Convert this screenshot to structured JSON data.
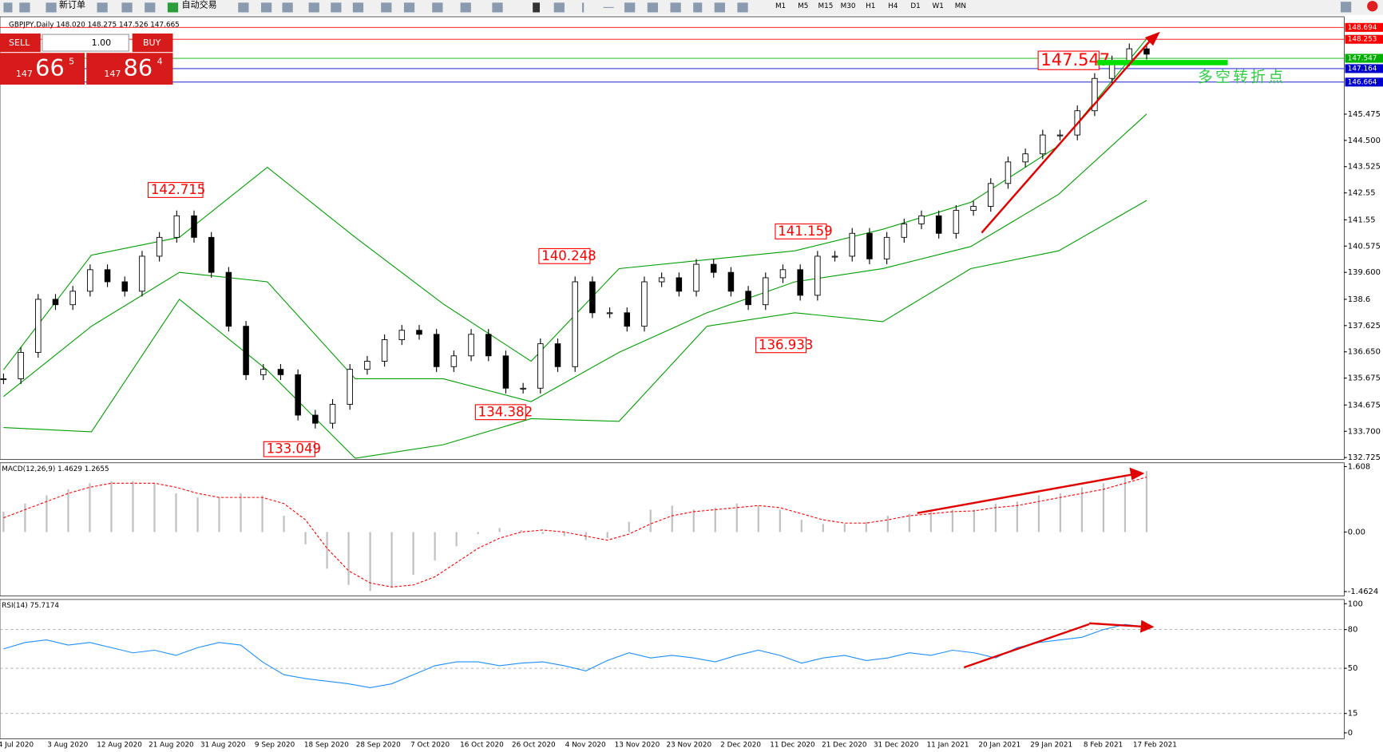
{
  "toolbar": {
    "new_order": "新订单",
    "auto_trading": "自动交易",
    "timeframes": [
      "M1",
      "M5",
      "M15",
      "M30",
      "H1",
      "H4",
      "D1",
      "W1",
      "MN"
    ]
  },
  "chart_header": "GBPJPY,Daily  148.020 148.275 147.526 147.665",
  "trade_panel": {
    "sell": "SELL",
    "lots": "1.00",
    "buy": "BUY",
    "bid_big": "147",
    "bid_main": "66",
    "bid_small": "5",
    "ask_big": "147",
    "ask_main": "86",
    "ask_small": "4"
  },
  "annotations": [
    "142.715",
    "133.049",
    "140.248",
    "134.382",
    "141.159",
    "136.933",
    "147.547",
    "多空转折点"
  ],
  "chart_data": [
    {
      "type": "candlestick",
      "ylim": [
        132.66,
        149.09
      ],
      "yticks": [
        145.475,
        {
          "value": 144.5,
          "label": "144.500"
        },
        143.525,
        142.55,
        141.55,
        140.575,
        {
          "value": 139.6,
          "label": "139.600"
        },
        138.6,
        137.625,
        {
          "value": 136.65,
          "label": "136.650"
        },
        135.675,
        134.675,
        {
          "value": 133.7,
          "label": "133.700"
        },
        132.725
      ],
      "levels": [
        {
          "value": 148.694,
          "color": "#ff0000"
        },
        {
          "value": 148.253,
          "color": "#ff0000"
        },
        {
          "value": 147.547,
          "color": "#00b000"
        },
        {
          "value": 147.164,
          "color": "#0000cc"
        },
        {
          "value": 146.664,
          "color": "#0000cc"
        }
      ],
      "x_labels": [
        "4 Jul 2020",
        "3 Aug 2020",
        "12 Aug 2020",
        "21 Aug 2020",
        "31 Aug 2020",
        "9 Sep 2020",
        "18 Sep 2020",
        "28 Sep 2020",
        "7 Oct 2020",
        "16 Oct 2020",
        "26 Oct 2020",
        "4 Nov 2020",
        "13 Nov 2020",
        "23 Nov 2020",
        "2 Dec 2020",
        "11 Dec 2020",
        "21 Dec 2020",
        "31 Dec 2020",
        "11 Jan 2021",
        "20 Jan 2021",
        "29 Jan 2021",
        "8 Feb 2021",
        "17 Feb 2021"
      ],
      "values": [
        135.65,
        136.63,
        138.6,
        138.4,
        138.9,
        139.7,
        139.25,
        138.9,
        140.2,
        140.9,
        141.7,
        140.9,
        139.6,
        137.6,
        135.8,
        136.0,
        135.8,
        134.3,
        134.0,
        134.7,
        136.0,
        136.3,
        137.1,
        137.45,
        137.3,
        136.1,
        136.5,
        137.3,
        136.5,
        135.3,
        135.3,
        136.95,
        136.1,
        139.25,
        138.1,
        138.1,
        137.6,
        139.25,
        139.4,
        138.9,
        139.9,
        139.6,
        138.9,
        138.4,
        139.4,
        139.7,
        138.75,
        140.2,
        140.2,
        141.05,
        140.1,
        140.9,
        141.4,
        141.7,
        141.05,
        141.9,
        142.05,
        142.9,
        143.7,
        144.0,
        144.7,
        144.7,
        145.6,
        146.8,
        147.45,
        147.9,
        147.7
      ],
      "bands": [
        {
          "color": "#00a000",
          "values": [
            135.98,
            140.24,
            140.9,
            143.5,
            140.9,
            138.43,
            136.3,
            139.74,
            140.07,
            140.4,
            141.2,
            142.2,
            144.3,
            148.27
          ]
        },
        {
          "color": "#00a000",
          "values": [
            134.99,
            137.6,
            139.6,
            139.25,
            135.65,
            135.65,
            134.8,
            136.63,
            138.1,
            139.25,
            139.74,
            140.56,
            142.5,
            145.48
          ]
        },
        {
          "color": "#00a000",
          "values": [
            133.84,
            133.68,
            138.6,
            135.97,
            132.7,
            133.2,
            134.17,
            134.07,
            137.6,
            138.1,
            137.77,
            139.74,
            140.4,
            142.27
          ]
        }
      ]
    },
    {
      "type": "macd",
      "title": "MACD(12,26,9) 1.4629 1.2655",
      "ylim": [
        -1.57,
        1.7
      ],
      "yticks": [
        1.608,
        {
          "value": 0,
          "label": "0.00"
        },
        -1.4624
      ],
      "series": [
        {
          "color": "#c0c0c0",
          "values": [
            0.5,
            0.7,
            0.9,
            1.05,
            1.2,
            1.25,
            1.25,
            1.2,
            0.95,
            0.85,
            0.85,
            0.95,
            0.9,
            0.4,
            -0.3,
            -0.9,
            -1.3,
            -1.45,
            -1.35,
            -1.05,
            -0.7,
            -0.35,
            -0.05,
            0.1,
            0.05,
            -0.05,
            -0.1,
            -0.2,
            -0.15,
            0.25,
            0.55,
            0.65,
            0.55,
            0.6,
            0.7,
            0.65,
            0.55,
            0.3,
            0.2,
            0.2,
            0.25,
            0.4,
            0.45,
            0.5,
            0.55,
            0.55,
            0.7,
            0.75,
            0.9,
            0.95,
            1.1,
            1.2,
            1.35,
            1.5
          ]
        },
        {
          "color": "#ff0000",
          "values": [
            0.35,
            0.55,
            0.75,
            0.95,
            1.1,
            1.2,
            1.2,
            1.2,
            1.1,
            0.95,
            0.85,
            0.85,
            0.85,
            0.7,
            0.3,
            -0.4,
            -0.95,
            -1.25,
            -1.35,
            -1.3,
            -1.1,
            -0.75,
            -0.4,
            -0.15,
            0.0,
            0.05,
            0.0,
            -0.1,
            -0.2,
            -0.05,
            0.2,
            0.4,
            0.5,
            0.55,
            0.6,
            0.65,
            0.6,
            0.45,
            0.3,
            0.22,
            0.22,
            0.3,
            0.4,
            0.45,
            0.5,
            0.52,
            0.6,
            0.65,
            0.75,
            0.85,
            0.95,
            1.05,
            1.2,
            1.35
          ]
        }
      ]
    },
    {
      "type": "line",
      "title": "RSI(14) 75.7174",
      "ylim": [
        -4.6,
        103.3
      ],
      "yticks": [
        100,
        80,
        50,
        15,
        0
      ],
      "levels": [
        80,
        50,
        15
      ],
      "color": "#1e90ff",
      "values": [
        65,
        70,
        72,
        68,
        70,
        66,
        62,
        64,
        60,
        66,
        70,
        68,
        55,
        45,
        42,
        40,
        38,
        35,
        38,
        45,
        52,
        55,
        55,
        52,
        54,
        55,
        52,
        48,
        56,
        62,
        58,
        60,
        58,
        55,
        60,
        64,
        60,
        54,
        58,
        60,
        56,
        58,
        62,
        60,
        64,
        62,
        58,
        66,
        70,
        72,
        74,
        80,
        84,
        82
      ]
    }
  ]
}
